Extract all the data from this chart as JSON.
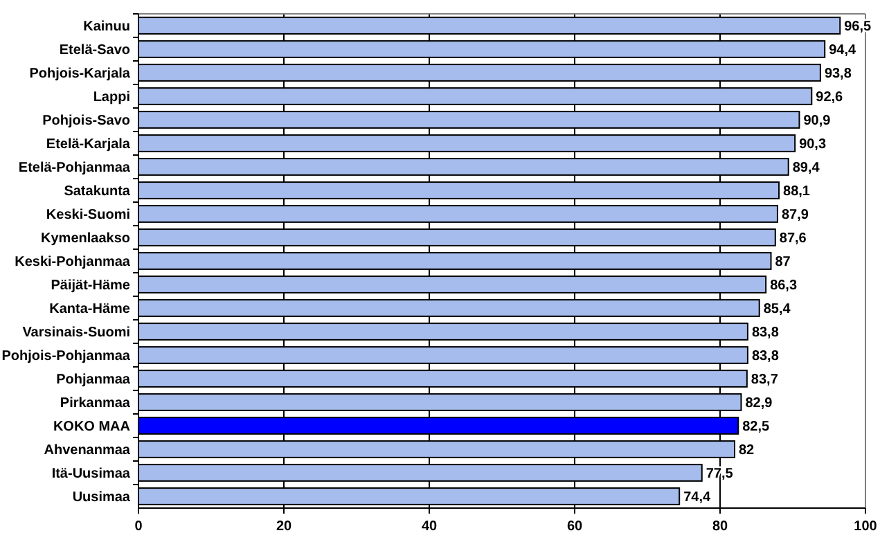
{
  "chart_data": {
    "type": "bar",
    "orientation": "horizontal",
    "categories": [
      "Kainuu",
      "Etelä-Savo",
      "Pohjois-Karjala",
      "Lappi",
      "Pohjois-Savo",
      "Etelä-Karjala",
      "Etelä-Pohjanmaa",
      "Satakunta",
      "Keski-Suomi",
      "Kymenlaakso",
      "Keski-Pohjanmaa",
      "Päijät-Häme",
      "Kanta-Häme",
      "Varsinais-Suomi",
      "Pohjois-Pohjanmaa",
      "Pohjanmaa",
      "Pirkanmaa",
      "KOKO MAA",
      "Ahvenanmaa",
      "Itä-Uusimaa",
      "Uusimaa"
    ],
    "values": [
      96.5,
      94.4,
      93.8,
      92.6,
      90.9,
      90.3,
      89.4,
      88.1,
      87.9,
      87.6,
      87,
      86.3,
      85.4,
      83.8,
      83.8,
      83.7,
      82.9,
      82.5,
      82,
      77.5,
      74.4
    ],
    "value_labels": [
      "96,5",
      "94,4",
      "93,8",
      "92,6",
      "90,9",
      "90,3",
      "89,4",
      "88,1",
      "87,9",
      "87,6",
      "87",
      "86,3",
      "85,4",
      "83,8",
      "83,8",
      "83,7",
      "82,9",
      "82,5",
      "82",
      "77,5",
      "74,4"
    ],
    "colors": [
      "#a6bcec",
      "#a6bcec",
      "#a6bcec",
      "#a6bcec",
      "#a6bcec",
      "#a6bcec",
      "#a6bcec",
      "#a6bcec",
      "#a6bcec",
      "#a6bcec",
      "#a6bcec",
      "#a6bcec",
      "#a6bcec",
      "#a6bcec",
      "#a6bcec",
      "#a6bcec",
      "#a6bcec",
      "#0000ff",
      "#a6bcec",
      "#a6bcec",
      "#a6bcec"
    ],
    "xlim": [
      0,
      100
    ],
    "xticks": [
      0,
      20,
      40,
      60,
      80,
      100
    ],
    "grid": "x"
  }
}
